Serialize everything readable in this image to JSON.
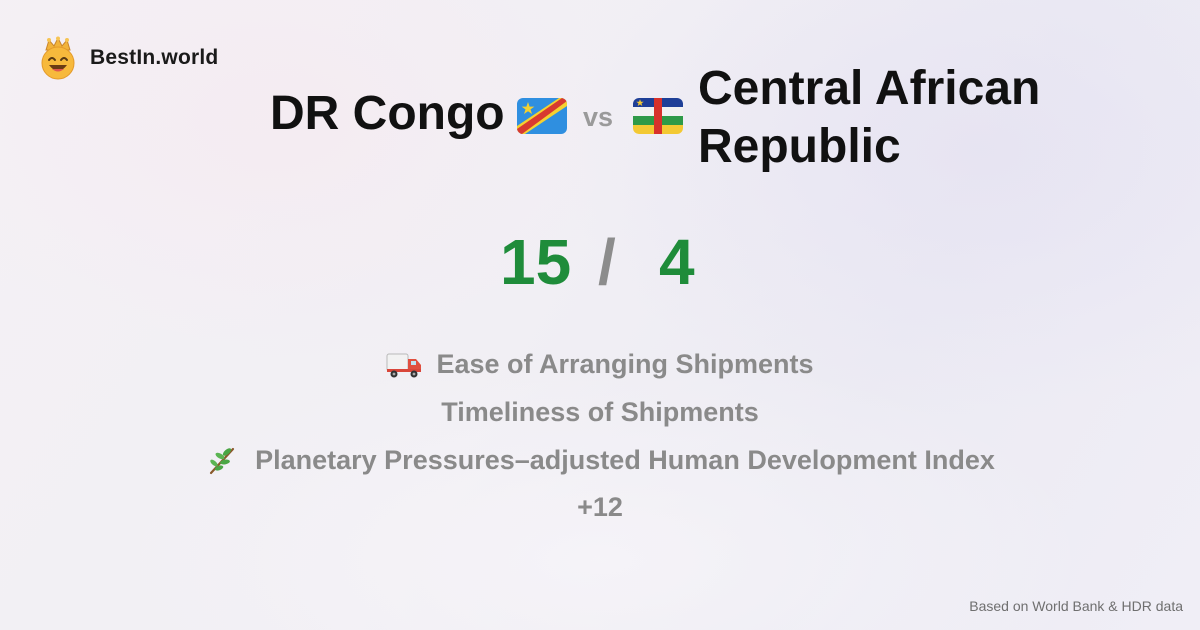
{
  "brand": {
    "name": "BestIn.world",
    "logo_icon": "crown-smiley-icon"
  },
  "comparison": {
    "left_country": "DR Congo",
    "left_flag_icon": "dr-congo-flag-icon",
    "vs_label": "vs",
    "right_country": "Central African Republic",
    "right_flag_icon": "central-african-republic-flag-icon"
  },
  "score": {
    "left": "15",
    "separator": "/",
    "right": "4",
    "winner_color": "#1f8c3a"
  },
  "metrics": [
    {
      "icon": "truck-icon",
      "label": "Ease of Arranging Shipments"
    },
    {
      "icon": "",
      "label": "Timeliness of Shipments"
    },
    {
      "icon": "plant-branch-icon",
      "label": "Planetary Pressures–adjusted Human Development Index"
    }
  ],
  "more_label": "+12",
  "footer": {
    "source": "Based on World Bank & HDR data"
  }
}
